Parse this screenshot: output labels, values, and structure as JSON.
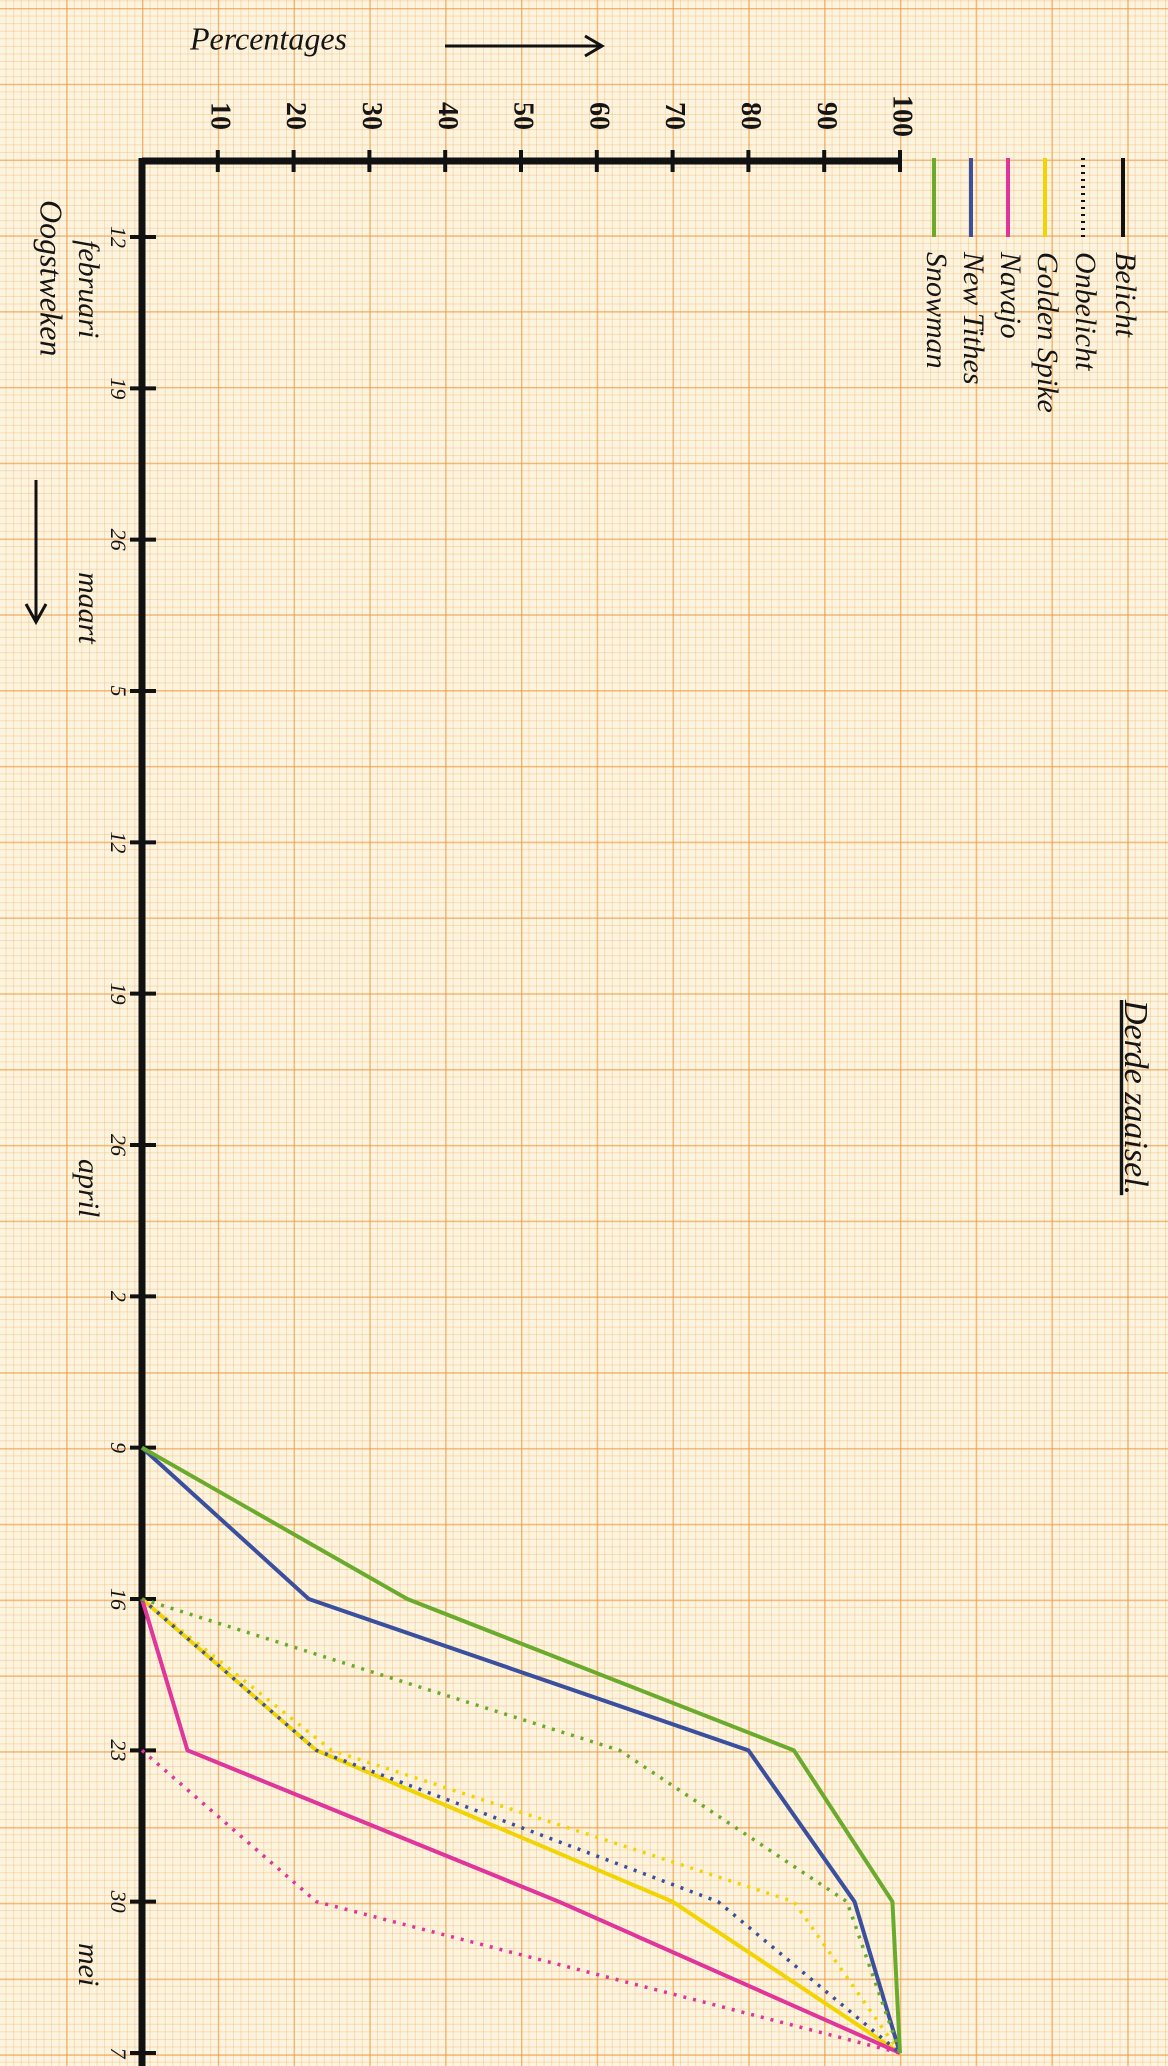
{
  "chart_data": {
    "type": "line",
    "title": "Derde zaaisel.",
    "x_axis_label": "Percentages",
    "y_axis_label": "Oogstweken",
    "xlim": [
      0,
      100
    ],
    "xticks": [
      10,
      20,
      30,
      40,
      50,
      60,
      70,
      80,
      90,
      100
    ],
    "categories": [
      "12",
      "19",
      "26",
      "5",
      "12",
      "19",
      "26",
      "2",
      "9",
      "16",
      "23",
      "30",
      "7"
    ],
    "month_labels": [
      "februari",
      "maart",
      "april",
      "mei"
    ],
    "legend_styles": [
      {
        "label": "Belicht",
        "dash": "solid",
        "color": "#111111"
      },
      {
        "label": "Onbelicht",
        "dash": "dotted",
        "color": "#111111"
      }
    ],
    "series": [
      {
        "name": "Golden Spike",
        "color": "#f2d400",
        "values": [
          null,
          null,
          null,
          null,
          null,
          null,
          null,
          null,
          null,
          0,
          23,
          70,
          100
        ],
        "onbelicht_values": [
          null,
          null,
          null,
          null,
          null,
          null,
          null,
          null,
          null,
          0,
          25,
          86,
          100
        ]
      },
      {
        "name": "Navajo",
        "color": "#e0359a",
        "values": [
          null,
          null,
          null,
          null,
          null,
          null,
          null,
          null,
          null,
          0,
          6,
          55,
          100
        ],
        "onbelicht_values": [
          null,
          null,
          null,
          null,
          null,
          null,
          null,
          null,
          null,
          null,
          0,
          23,
          100
        ]
      },
      {
        "name": "New Tithes",
        "color": "#3a4f9e",
        "values": [
          null,
          null,
          null,
          null,
          null,
          null,
          null,
          null,
          0,
          22,
          80,
          94,
          100
        ],
        "onbelicht_values": [
          null,
          null,
          null,
          null,
          null,
          null,
          null,
          null,
          null,
          0,
          23,
          76,
          100
        ]
      },
      {
        "name": "Snowman",
        "color": "#6aab2e",
        "values": [
          null,
          null,
          null,
          null,
          null,
          null,
          null,
          null,
          0,
          35,
          86,
          99,
          100
        ],
        "onbelicht_values": [
          null,
          null,
          null,
          null,
          null,
          null,
          null,
          null,
          null,
          0,
          63,
          93,
          100
        ]
      }
    ]
  }
}
